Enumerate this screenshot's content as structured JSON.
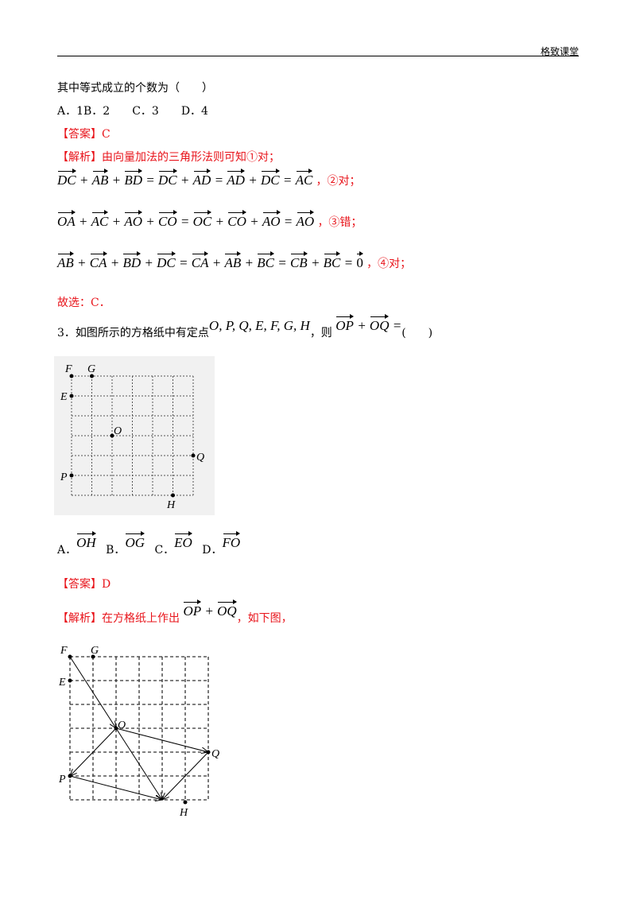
{
  "header": {
    "brand": "格致课堂"
  },
  "intro": {
    "question_line": "其中等式成立的个数为（　　）",
    "options_line": "A．1B．2　　C．3　　D．4"
  },
  "q2": {
    "answer": "【答案】C",
    "analysis_label": "【解析】",
    "analysis_text": "由向量加法的三角形法则可知①对；",
    "eq1": {
      "terms": [
        "DC",
        "AB",
        "BD",
        "DC",
        "AD",
        "AD",
        "DC",
        "AC"
      ],
      "note": "，②对；"
    },
    "eq2": {
      "terms": [
        "OA",
        "AC",
        "AO",
        "CO",
        "OC",
        "CO",
        "AO",
        "AO"
      ],
      "note": "，③错；"
    },
    "eq3": {
      "terms": [
        "AB",
        "CA",
        "BD",
        "DC",
        "CA",
        "AB",
        "BC",
        "CB",
        "BC",
        "0"
      ],
      "note": "，④对；"
    },
    "conclusion": "故选：C．"
  },
  "q3": {
    "stem_prefix": "3．如图所示的方格纸中有定点",
    "points_text": "O, P, Q, E, F, G, H",
    "stem_mid": "，则",
    "sum_terms": [
      "OP",
      "OQ"
    ],
    "stem_end": "(　　)",
    "figure_labels": [
      "F",
      "G",
      "E",
      "O",
      "Q",
      "P",
      "H"
    ],
    "options": [
      {
        "letter": "A．",
        "vec": "OH"
      },
      {
        "letter": "B．",
        "vec": "OG"
      },
      {
        "letter": "C．",
        "vec": "EO"
      },
      {
        "letter": "D．",
        "vec": "FO"
      }
    ],
    "answer": "【答案】D",
    "analysis_label": "【解析】",
    "analysis_text_1": "在方格纸上作出",
    "analysis_terms": [
      "OP",
      "OQ"
    ],
    "analysis_text_2": "，如下图，",
    "figure2_labels": [
      "F",
      "G",
      "E",
      "O",
      "Q",
      "P",
      "H"
    ]
  }
}
